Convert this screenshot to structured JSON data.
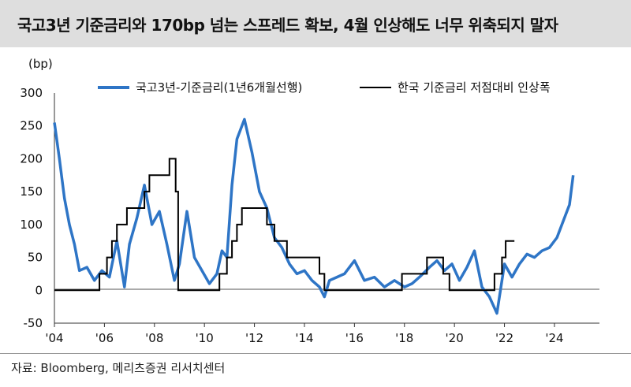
{
  "title": "국고3년 기준금리와 170bp 넘는 스프레드 확보, 4월 인상해도 너무 위축되지 말자",
  "source": "자료: Bloomberg, 메리츠증권 리서치센터",
  "chart_data": {
    "type": "line",
    "ylabel": "(bp)",
    "ylim": [
      -50,
      300
    ],
    "xlim": [
      2004,
      2025.8
    ],
    "yticks": [
      "300",
      "250",
      "200",
      "150",
      "100",
      "50",
      "0",
      "-50"
    ],
    "xticks": [
      "'04",
      "'06",
      "'08",
      "'10",
      "'12",
      "'14",
      "'16",
      "'18",
      "'20",
      "'22",
      "'24"
    ],
    "legend_position": "top",
    "series": [
      {
        "name": "국고3년-기준금리(1년6개월선행)",
        "color": "#2e75c6",
        "x": [
          2004.0,
          2004.2,
          2004.4,
          2004.6,
          2004.8,
          2005.0,
          2005.3,
          2005.6,
          2005.9,
          2006.2,
          2006.5,
          2006.8,
          2007.0,
          2007.3,
          2007.6,
          2007.9,
          2008.2,
          2008.5,
          2008.8,
          2009.0,
          2009.3,
          2009.6,
          2009.9,
          2010.2,
          2010.5,
          2010.7,
          2010.9,
          2011.1,
          2011.3,
          2011.6,
          2011.9,
          2012.2,
          2012.5,
          2012.8,
          2013.1,
          2013.4,
          2013.7,
          2014.0,
          2014.3,
          2014.6,
          2014.8,
          2015.0,
          2015.3,
          2015.6,
          2016.0,
          2016.4,
          2016.8,
          2017.2,
          2017.6,
          2018.0,
          2018.3,
          2018.6,
          2019.0,
          2019.3,
          2019.6,
          2019.9,
          2020.2,
          2020.5,
          2020.8,
          2021.1,
          2021.4,
          2021.7,
          2022.0,
          2022.3,
          2022.6,
          2022.9,
          2023.2,
          2023.5,
          2023.8,
          2024.1,
          2024.4,
          2024.6,
          2024.75
        ],
        "values": [
          255,
          200,
          140,
          100,
          70,
          30,
          35,
          15,
          30,
          20,
          75,
          5,
          70,
          110,
          160,
          100,
          120,
          70,
          15,
          40,
          120,
          50,
          30,
          10,
          25,
          60,
          50,
          160,
          230,
          260,
          210,
          150,
          125,
          80,
          65,
          40,
          25,
          30,
          15,
          5,
          -10,
          15,
          20,
          25,
          45,
          15,
          20,
          5,
          15,
          5,
          10,
          20,
          35,
          45,
          30,
          40,
          15,
          35,
          60,
          5,
          -10,
          -35,
          40,
          20,
          40,
          55,
          50,
          60,
          65,
          80,
          110,
          130,
          175
        ]
      },
      {
        "name": "한국 기준금리 저점대비 인상폭",
        "color": "#000000",
        "steps": [
          [
            2004.0,
            0
          ],
          [
            2005.8,
            25
          ],
          [
            2006.1,
            50
          ],
          [
            2006.3,
            75
          ],
          [
            2006.5,
            100
          ],
          [
            2006.9,
            125
          ],
          [
            2007.6,
            150
          ],
          [
            2007.8,
            175
          ],
          [
            2008.6,
            200
          ],
          [
            2008.85,
            150
          ],
          [
            2008.95,
            0
          ],
          [
            2010.6,
            25
          ],
          [
            2010.9,
            50
          ],
          [
            2011.1,
            75
          ],
          [
            2011.3,
            100
          ],
          [
            2011.5,
            125
          ],
          [
            2012.5,
            100
          ],
          [
            2012.8,
            75
          ],
          [
            2013.3,
            50
          ],
          [
            2014.6,
            25
          ],
          [
            2014.8,
            0
          ],
          [
            2017.9,
            25
          ],
          [
            2018.9,
            50
          ],
          [
            2019.55,
            25
          ],
          [
            2019.8,
            0
          ],
          [
            2021.6,
            25
          ],
          [
            2021.9,
            50
          ],
          [
            2022.05,
            75
          ],
          [
            2022.4,
            75
          ]
        ]
      }
    ]
  }
}
